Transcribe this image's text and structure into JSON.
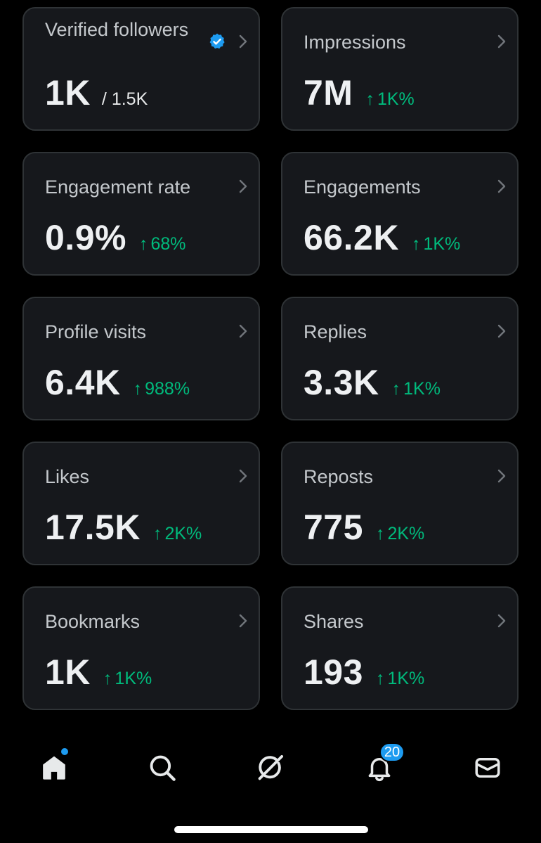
{
  "colors": {
    "background": "#000000",
    "card": "#16181c",
    "card_border": "#2f3336",
    "positive": "#00ba7c",
    "accent": "#1d9bf0"
  },
  "metrics": [
    {
      "label": "Verified followers",
      "value": "1K",
      "total": "/ 1.5K",
      "verified_icon": "verified-badge-icon"
    },
    {
      "label": "Impressions",
      "value": "7M",
      "delta": "1K%"
    },
    {
      "label": "Engagement rate",
      "value": "0.9%",
      "delta": "68%"
    },
    {
      "label": "Engagements",
      "value": "66.2K",
      "delta": "1K%"
    },
    {
      "label": "Profile visits",
      "value": "6.4K",
      "delta": "988%"
    },
    {
      "label": "Replies",
      "value": "3.3K",
      "delta": "1K%"
    },
    {
      "label": "Likes",
      "value": "17.5K",
      "delta": "2K%"
    },
    {
      "label": "Reposts",
      "value": "775",
      "delta": "2K%"
    },
    {
      "label": "Bookmarks",
      "value": "1K",
      "delta": "1K%"
    },
    {
      "label": "Shares",
      "value": "193",
      "delta": "1K%"
    }
  ],
  "delta_arrow": "↑",
  "tabbar": {
    "tabs": [
      {
        "name": "home",
        "icon": "home-icon",
        "active": true,
        "has_dot": true
      },
      {
        "name": "search",
        "icon": "search-icon"
      },
      {
        "name": "grok",
        "icon": "grok-icon"
      },
      {
        "name": "notifications",
        "icon": "bell-icon",
        "badge": "20"
      },
      {
        "name": "messages",
        "icon": "mail-icon"
      }
    ]
  }
}
